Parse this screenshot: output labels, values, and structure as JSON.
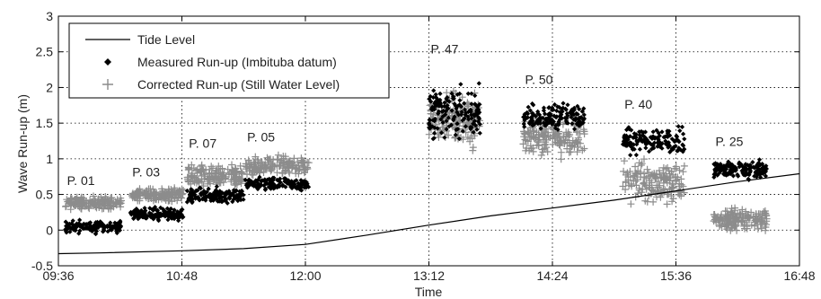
{
  "chart_data": {
    "type": "scatter",
    "xlabel": "Time",
    "ylabel": "Wave Run-up (m)",
    "xlim": [
      "09:36",
      "16:48"
    ],
    "ylim": [
      -0.5,
      3
    ],
    "x_ticks": [
      "09:36",
      "10:48",
      "12:00",
      "13:12",
      "14:24",
      "15:36",
      "16:48"
    ],
    "y_ticks": [
      "-0.5",
      "0",
      "0.5",
      "1",
      "1.5",
      "2",
      "2.5",
      "3"
    ],
    "grid": true,
    "legend_position": "top-left",
    "series": [
      {
        "name": "Tide Level",
        "kind": "line",
        "color": "#000000",
        "points": [
          {
            "x": "09:36",
            "y": -0.33
          },
          {
            "x": "10:00",
            "y": -0.32
          },
          {
            "x": "10:48",
            "y": -0.29
          },
          {
            "x": "11:24",
            "y": -0.26
          },
          {
            "x": "12:00",
            "y": -0.2
          },
          {
            "x": "12:36",
            "y": -0.07
          },
          {
            "x": "13:12",
            "y": 0.07
          },
          {
            "x": "13:48",
            "y": 0.2
          },
          {
            "x": "14:24",
            "y": 0.31
          },
          {
            "x": "15:00",
            "y": 0.42
          },
          {
            "x": "15:36",
            "y": 0.55
          },
          {
            "x": "16:12",
            "y": 0.68
          },
          {
            "x": "16:48",
            "y": 0.79
          }
        ]
      },
      {
        "name": "Measured Run-up (Imbituba datum)",
        "kind": "scatter",
        "marker": "diamond",
        "color": "#000000"
      },
      {
        "name": "Corrected Run-up (Still Water Level)",
        "kind": "scatter",
        "marker": "plus",
        "color": "#8c8c8c"
      }
    ],
    "groups": [
      {
        "label": "P. 01",
        "start": "09:40",
        "end": "10:13",
        "measured_mean": 0.05,
        "measured_spread": 0.12,
        "corrected_mean": 0.38,
        "corrected_spread": 0.12
      },
      {
        "label": "P. 03",
        "start": "10:18",
        "end": "10:49",
        "measured_mean": 0.22,
        "measured_spread": 0.12,
        "corrected_mean": 0.5,
        "corrected_spread": 0.12
      },
      {
        "label": "P. 07",
        "start": "10:51",
        "end": "11:24",
        "measured_mean": 0.48,
        "measured_spread": 0.15,
        "corrected_mean": 0.75,
        "corrected_spread": 0.22
      },
      {
        "label": "P. 05",
        "start": "11:25",
        "end": "12:02",
        "measured_mean": 0.65,
        "measured_spread": 0.13,
        "corrected_mean": 0.9,
        "corrected_spread": 0.18
      },
      {
        "label": "P. 47",
        "start": "13:12",
        "end": "13:42",
        "measured_mean": 1.65,
        "measured_spread": 0.5,
        "corrected_mean": 1.55,
        "corrected_spread": 0.5
      },
      {
        "label": "P. 50",
        "start": "14:07",
        "end": "14:43",
        "measured_mean": 1.6,
        "measured_spread": 0.25,
        "corrected_mean": 1.3,
        "corrected_spread": 0.35
      },
      {
        "label": "P. 40",
        "start": "15:05",
        "end": "15:41",
        "measured_mean": 1.25,
        "measured_spread": 0.25,
        "corrected_mean": 0.65,
        "corrected_spread": 0.4
      },
      {
        "label": "P. 25",
        "start": "15:58",
        "end": "16:29",
        "measured_mean": 0.85,
        "measured_spread": 0.17,
        "corrected_mean": 0.15,
        "corrected_spread": 0.22
      }
    ]
  }
}
